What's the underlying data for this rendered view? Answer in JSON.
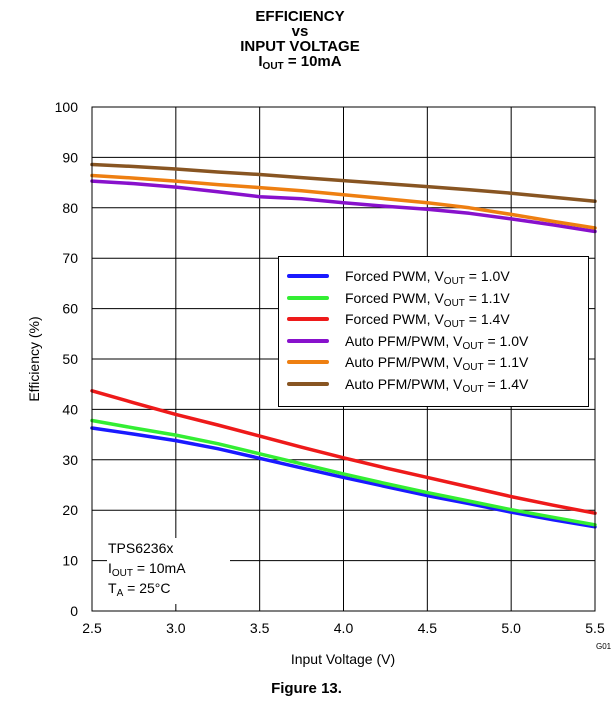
{
  "title": {
    "line1": "EFFICIENCY",
    "line2": "vs",
    "line3": "INPUT VOLTAGE",
    "line4_main": "I",
    "line4_sub": "OUT",
    "line4_rest": " = 10mA"
  },
  "caption": "Figure 13.",
  "figure_code": "G01",
  "annotation": {
    "device": "TPS6236x",
    "iout_main": "I",
    "iout_sub": "OUT",
    "iout_rest": " = 10mA",
    "ta_main": "T",
    "ta_sub": "A",
    "ta_rest": " = 25°C"
  },
  "legend": [
    {
      "prefix": "Forced PWM, V",
      "sub": "OUT",
      "suffix": " = 1.0V"
    },
    {
      "prefix": "Forced PWM, V",
      "sub": "OUT",
      "suffix": " = 1.1V"
    },
    {
      "prefix": "Forced PWM, V",
      "sub": "OUT",
      "suffix": " = 1.4V"
    },
    {
      "prefix": "Auto PFM/PWM, V",
      "sub": "OUT",
      "suffix": " = 1.0V"
    },
    {
      "prefix": "Auto PFM/PWM, V",
      "sub": "OUT",
      "suffix": " = 1.1V"
    },
    {
      "prefix": "Auto PFM/PWM, V",
      "sub": "OUT",
      "suffix": " = 1.4V"
    }
  ],
  "chart_data": {
    "type": "line",
    "title": "EFFICIENCY vs INPUT VOLTAGE IOUT = 10mA",
    "xlabel": "Input Voltage (V)",
    "ylabel": "Efficiency (%)",
    "xlim": [
      2.5,
      5.5
    ],
    "ylim": [
      0,
      100
    ],
    "xticks": [
      "2.5",
      "3.0",
      "3.5",
      "4.0",
      "4.5",
      "5.0",
      "5.5"
    ],
    "yticks": [
      "0",
      "10",
      "20",
      "30",
      "40",
      "50",
      "60",
      "70",
      "80",
      "90",
      "100"
    ],
    "grid": true,
    "legend_position": "center-right",
    "series": [
      {
        "name": "Forced PWM, VOUT = 1.0V",
        "color": "#1a1aff",
        "x": [
          2.5,
          2.75,
          3.0,
          3.25,
          3.5,
          3.75,
          4.0,
          4.25,
          4.5,
          4.75,
          5.0,
          5.25,
          5.5
        ],
        "y": [
          36.3,
          35.1,
          33.8,
          32.2,
          30.3,
          28.4,
          26.5,
          24.7,
          22.9,
          21.3,
          19.6,
          18.1,
          16.7
        ]
      },
      {
        "name": "Forced PWM, VOUT = 1.1V",
        "color": "#33ee33",
        "x": [
          2.5,
          2.75,
          3.0,
          3.25,
          3.5,
          3.75,
          4.0,
          4.25,
          4.5,
          4.75,
          5.0,
          5.25,
          5.5
        ],
        "y": [
          37.8,
          36.3,
          34.9,
          33.2,
          31.2,
          29.2,
          27.2,
          25.3,
          23.5,
          21.8,
          20.1,
          18.6,
          17.1
        ]
      },
      {
        "name": "Forced PWM, VOUT = 1.4V",
        "color": "#ee1a1a",
        "x": [
          2.5,
          2.75,
          3.0,
          3.25,
          3.5,
          3.75,
          4.0,
          4.25,
          4.5,
          4.75,
          5.0,
          5.25,
          5.5
        ],
        "y": [
          43.7,
          41.3,
          39.0,
          36.9,
          34.7,
          32.5,
          30.4,
          28.4,
          26.5,
          24.6,
          22.7,
          21.0,
          19.4
        ]
      },
      {
        "name": "Auto PFM/PWM, VOUT = 1.0V",
        "color": "#8811cc",
        "x": [
          2.5,
          2.75,
          3.0,
          3.25,
          3.5,
          3.75,
          4.0,
          4.25,
          4.5,
          4.75,
          5.0,
          5.25,
          5.5
        ],
        "y": [
          85.3,
          84.8,
          84.1,
          83.2,
          82.2,
          81.8,
          81.0,
          80.3,
          79.7,
          78.9,
          77.8,
          76.6,
          75.3
        ]
      },
      {
        "name": "Auto PFM/PWM, VOUT = 1.1V",
        "color": "#ee7f11",
        "x": [
          2.5,
          2.75,
          3.0,
          3.25,
          3.5,
          3.75,
          4.0,
          4.25,
          4.5,
          4.75,
          5.0,
          5.25,
          5.5
        ],
        "y": [
          86.4,
          85.9,
          85.3,
          84.6,
          84.0,
          83.4,
          82.6,
          81.8,
          81.0,
          80.0,
          78.7,
          77.3,
          76.0
        ]
      },
      {
        "name": "Auto PFM/PWM, VOUT = 1.4V",
        "color": "#885522",
        "x": [
          2.5,
          2.75,
          3.0,
          3.25,
          3.5,
          3.75,
          4.0,
          4.25,
          4.5,
          4.75,
          5.0,
          5.25,
          5.5
        ],
        "y": [
          88.6,
          88.2,
          87.7,
          87.1,
          86.6,
          86.0,
          85.4,
          84.8,
          84.2,
          83.6,
          82.9,
          82.1,
          81.3
        ]
      }
    ]
  }
}
